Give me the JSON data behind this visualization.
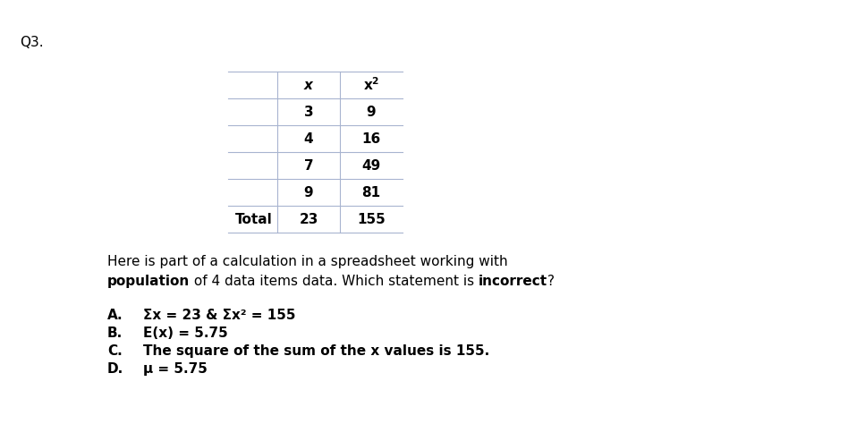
{
  "q_label": "Q3.",
  "table_rows": [
    [
      "",
      "x",
      "x²"
    ],
    [
      "",
      "3",
      "9"
    ],
    [
      "",
      "4",
      "16"
    ],
    [
      "",
      "7",
      "49"
    ],
    [
      "",
      "9",
      "81"
    ],
    [
      "Total",
      "23",
      "155"
    ]
  ],
  "paragraph_line1": "Here is part of a calculation in a spreadsheet working with",
  "paragraph_line2_parts": [
    {
      "text": "population",
      "bold": true
    },
    {
      "text": " of 4 data items data. Which statement is ",
      "bold": false
    },
    {
      "text": "incorrect",
      "bold": true
    },
    {
      "text": "?",
      "bold": false
    }
  ],
  "options": [
    {
      "label": "A.",
      "text": "Σx = 23 & Σx² = 155"
    },
    {
      "label": "B.",
      "text": "E(x) = 5.75"
    },
    {
      "label": "C.",
      "text": "The square of the sum of the x values is 155."
    },
    {
      "label": "D.",
      "text": "μ = 5.75"
    }
  ],
  "bg_color": "#ffffff",
  "text_color": "#000000",
  "table_line_color": "#a8b4d0",
  "font_size": 11,
  "table_font_size": 11
}
